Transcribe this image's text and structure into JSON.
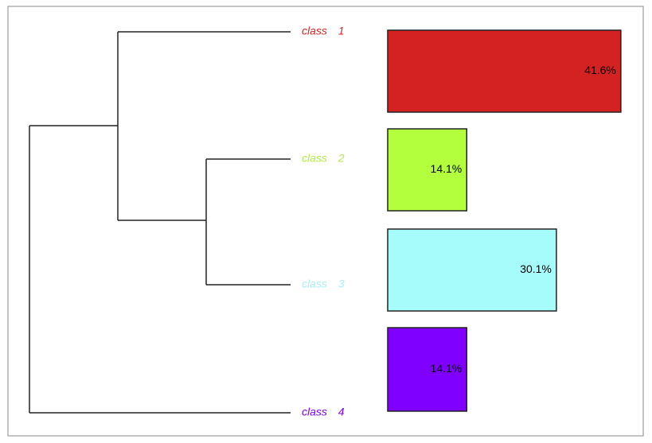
{
  "chart_data": {
    "type": "bar",
    "categories": [
      "class 1",
      "class 2",
      "class 3",
      "class 4"
    ],
    "values": [
      41.6,
      14.1,
      30.1,
      14.1
    ],
    "value_labels": [
      "41.6%",
      "14.1%",
      "30.1%",
      "14.1%"
    ],
    "colors": [
      "#d42222",
      "#b3ff3d",
      "#a6fbfb",
      "#8000ff"
    ]
  }
}
